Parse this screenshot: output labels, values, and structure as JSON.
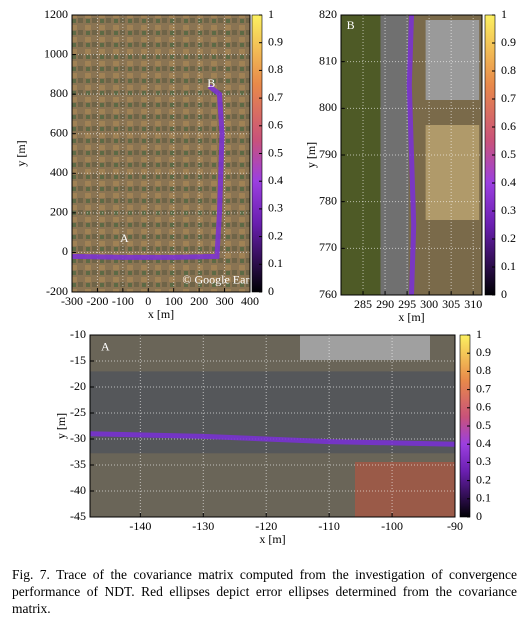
{
  "chart_data": [
    {
      "type": "line",
      "xlabel": "x [m]",
      "ylabel": "y [m]",
      "x": [
        -300,
        -100,
        100,
        270,
        280,
        290,
        280,
        240
      ],
      "series": [
        {
          "color": "#7a2fd8",
          "values": [
            -20,
            -25,
            -25,
            -20,
            200,
            600,
            800,
            840
          ]
        }
      ],
      "xlim": [
        -300,
        400
      ],
      "xticks": [
        -300,
        -200,
        -100,
        0,
        100,
        200,
        300,
        400
      ],
      "ylim": [
        -200,
        1200
      ],
      "yticks": [
        -200,
        0,
        200,
        400,
        600,
        800,
        1000,
        1200
      ],
      "grid": true,
      "annotations": [
        "A",
        "B",
        "© Google Earth"
      ],
      "colorbar": {
        "lim": [
          0,
          1
        ],
        "ticks": [
          0,
          0.1,
          0.2,
          0.3,
          0.4,
          0.5,
          0.6,
          0.7,
          0.8,
          0.9,
          1
        ]
      }
    },
    {
      "type": "line",
      "xlabel": "x [m]",
      "ylabel": "y [m]",
      "x": [
        296,
        296.5,
        296,
        295.5,
        296
      ],
      "series": [
        {
          "color": "#7a2fd8",
          "values": [
            760,
            775,
            790,
            805,
            820
          ]
        }
      ],
      "xlim": [
        280,
        312
      ],
      "xticks": [
        285,
        290,
        295,
        300,
        305,
        310
      ],
      "ylim": [
        760,
        820
      ],
      "yticks": [
        760,
        770,
        780,
        790,
        800,
        810,
        820
      ],
      "grid": true,
      "annotations": [
        "B"
      ],
      "colorbar": {
        "lim": [
          0,
          1
        ],
        "ticks": [
          0,
          0.1,
          0.2,
          0.3,
          0.4,
          0.5,
          0.6,
          0.7,
          0.8,
          0.9,
          1
        ]
      }
    },
    {
      "type": "line",
      "xlabel": "x [m]",
      "ylabel": "y [m]",
      "x": [
        -148,
        -130,
        -110,
        -90
      ],
      "series": [
        {
          "color": "#7a2fd8",
          "values": [
            -29,
            -29.5,
            -30.5,
            -31
          ]
        }
      ],
      "xlim": [
        -148,
        -90
      ],
      "xticks": [
        -140,
        -130,
        -120,
        -110,
        -100,
        -90
      ],
      "ylim": [
        -45,
        -10
      ],
      "yticks": [
        -45,
        -40,
        -35,
        -30,
        -25,
        -20,
        -15,
        -10
      ],
      "grid": true,
      "annotations": [
        "A"
      ],
      "colorbar": {
        "lim": [
          0,
          1
        ],
        "ticks": [
          0,
          0.1,
          0.2,
          0.3,
          0.4,
          0.5,
          0.6,
          0.7,
          0.8,
          0.9,
          1
        ]
      }
    }
  ],
  "caption": "Fig. 7.   Trace of the covariance matrix computed from the investigation of convergence performance of NDT. Red ellipses depict error ellipses determined from the covariance matrix."
}
